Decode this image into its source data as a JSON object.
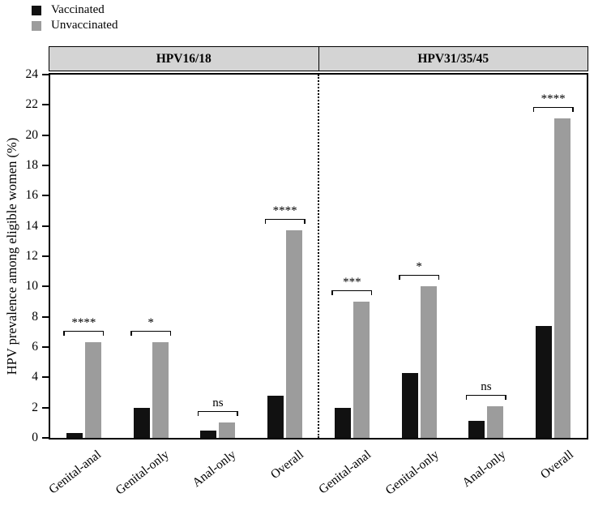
{
  "legend": {
    "items": [
      {
        "label": "Vaccinated",
        "color": "#111111"
      },
      {
        "label": "Unvaccinated",
        "color": "#9c9c9c"
      }
    ]
  },
  "chart_data": {
    "type": "bar",
    "title": "",
    "xlabel": "",
    "ylabel": "HPV prevalence among eligible women (%)",
    "ylim": [
      0,
      24
    ],
    "yticks": [
      0,
      2,
      4,
      6,
      8,
      10,
      12,
      14,
      16,
      18,
      20,
      22,
      24
    ],
    "grid": false,
    "legend_position": "top-left",
    "series": [
      {
        "name": "Vaccinated",
        "color": "#111111"
      },
      {
        "name": "Unvaccinated",
        "color": "#9c9c9c"
      }
    ],
    "panels": [
      {
        "label": "HPV16/18",
        "groups": [
          {
            "category": "Genital-anal",
            "vaccinated": 0.3,
            "unvaccinated": 6.3,
            "significance": "****"
          },
          {
            "category": "Genital-only",
            "vaccinated": 2.0,
            "unvaccinated": 6.3,
            "significance": "*"
          },
          {
            "category": "Anal-only",
            "vaccinated": 0.5,
            "unvaccinated": 1.0,
            "significance": "ns"
          },
          {
            "category": "Overall",
            "vaccinated": 2.8,
            "unvaccinated": 13.7,
            "significance": "****"
          }
        ]
      },
      {
        "label": "HPV31/35/45",
        "groups": [
          {
            "category": "Genital-anal",
            "vaccinated": 2.0,
            "unvaccinated": 9.0,
            "significance": "***"
          },
          {
            "category": "Genital-only",
            "vaccinated": 4.3,
            "unvaccinated": 10.0,
            "significance": "*"
          },
          {
            "category": "Anal-only",
            "vaccinated": 1.1,
            "unvaccinated": 2.1,
            "significance": "ns"
          },
          {
            "category": "Overall",
            "vaccinated": 7.4,
            "unvaccinated": 21.1,
            "significance": "****"
          }
        ]
      }
    ]
  }
}
